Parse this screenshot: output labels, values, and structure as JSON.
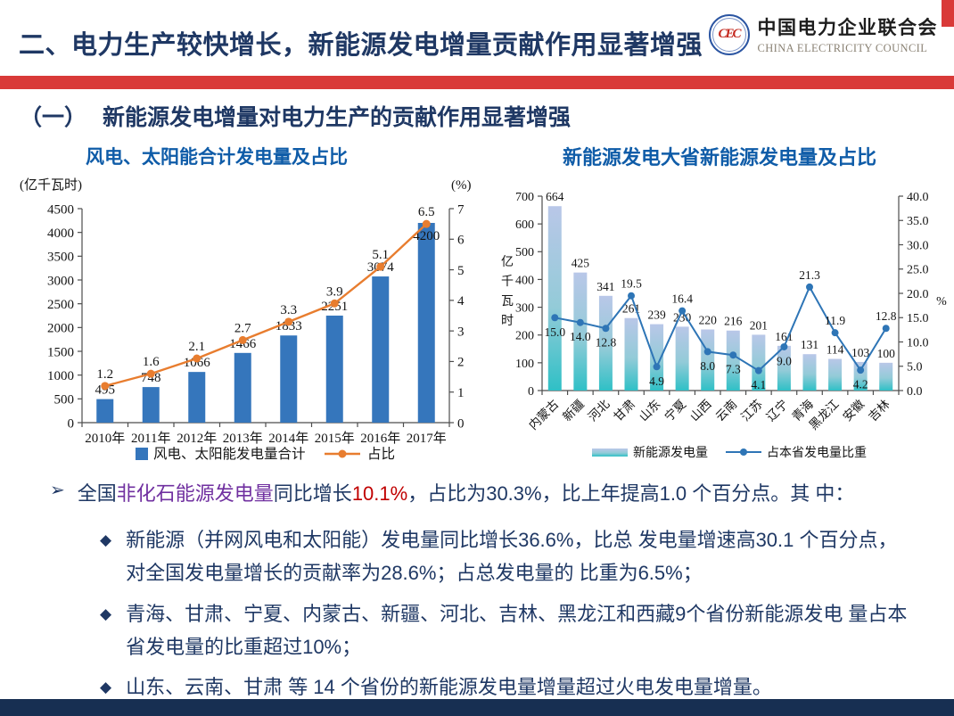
{
  "colors": {
    "accent_red": "#D93A38",
    "title_navy": "#1F3864",
    "body_navy": "#1F3864",
    "purple": "#7030A0",
    "red_text": "#C00000",
    "chart_title_blue": "#0F5CA8",
    "footer_navy": "#172F52",
    "bar_blue": "#3576BC",
    "line_orange": "#E87D2F",
    "line_blue": "#2E75B6",
    "bar_grad_top": "#B9C7E8",
    "bar_grad_mid": "#93CBD8",
    "bar_grad_bottom": "#2FC0C6"
  },
  "header": {
    "title": "二、电力生产较快增长，新能源发电增量贡献作用显著增强",
    "logo": {
      "emblem_letters": "CEC",
      "org_cn": "中国电力企业联合会",
      "org_en": "CHINA ELECTRICITY COUNCIL"
    }
  },
  "section": {
    "marker": "（一）",
    "title": "新能源发电增量对电力生产的贡献作用显著增强"
  },
  "chart_data": [
    {
      "type": "bar+line",
      "title": "风电、太阳能合计发电量及占比",
      "categories": [
        "2010年",
        "2011年",
        "2012年",
        "2013年",
        "2014年",
        "2015年",
        "2016年",
        "2017年"
      ],
      "series": [
        {
          "name": "风电、太阳能发电量合计",
          "type": "bar",
          "axis": "left",
          "values": [
            495,
            748,
            1066,
            1466,
            1833,
            2251,
            3074,
            4200
          ]
        },
        {
          "name": "占比",
          "type": "line",
          "axis": "right",
          "values": [
            1.2,
            1.6,
            2.1,
            2.7,
            3.3,
            3.9,
            5.1,
            6.5
          ]
        }
      ],
      "left_axis": {
        "unit": "(亿千瓦时)",
        "min": 0,
        "max": 4500,
        "step": 500
      },
      "right_axis": {
        "unit": "(%)",
        "min": 0,
        "max": 7,
        "step": 1,
        "decimals": 0
      },
      "legend_position": "bottom",
      "grid": false
    },
    {
      "type": "bar+line",
      "title": "新能源发电大省新能源发电量及占比",
      "categories": [
        "内蒙古",
        "新疆",
        "河北",
        "甘肃",
        "山东",
        "宁夏",
        "山西",
        "云南",
        "江苏",
        "辽宁",
        "青海",
        "黑龙江",
        "安徽",
        "吉林"
      ],
      "series": [
        {
          "name": "新能源发电量",
          "type": "bar",
          "axis": "left",
          "values": [
            664,
            425,
            341,
            261,
            239,
            230,
            220,
            216,
            201,
            161,
            131,
            114,
            103,
            100
          ]
        },
        {
          "name": "占本省发电量比重",
          "type": "line",
          "axis": "right",
          "values": [
            15.0,
            14.0,
            12.8,
            19.5,
            4.9,
            16.4,
            8.0,
            7.3,
            4.1,
            9.0,
            21.3,
            11.9,
            4.2,
            12.8
          ]
        }
      ],
      "left_axis": {
        "unit": "亿千瓦时",
        "min": 0,
        "max": 700,
        "step": 100
      },
      "right_axis": {
        "unit": "%",
        "min": 0,
        "max": 40,
        "step": 5,
        "decimals": 1
      },
      "legend_position": "bottom",
      "grid": false
    }
  ],
  "bullets": {
    "main": {
      "marker": "➢",
      "segments": [
        {
          "text": "全国",
          "color": "navy"
        },
        {
          "text": "非化石能源发电量",
          "color": "purple"
        },
        {
          "text": "同比增长",
          "color": "navy"
        },
        {
          "text": "10.1%",
          "color": "red"
        },
        {
          "text": "，占比为30.3%，比上年提高1.0 个百分点。其 中：",
          "color": "navy"
        }
      ]
    },
    "sub": [
      {
        "marker": "◆",
        "text": "新能源（并网风电和太阳能）发电量同比增长36.6%，比总 发电量增速高30.1 个百分点，对全国发电量增长的贡献率为28.6%；占总发电量的 比重为6.5%；"
      },
      {
        "marker": "◆",
        "text": "青海、甘肃、宁夏、内蒙古、新疆、河北、吉林、黑龙江和西藏9个省份新能源发电 量占本省发电量的比重超过10%；"
      },
      {
        "marker": "◆",
        "text": "山东、云南、甘肃 等 14 个省份的新能源发电量增量超过火电发电量增量。"
      }
    ]
  }
}
